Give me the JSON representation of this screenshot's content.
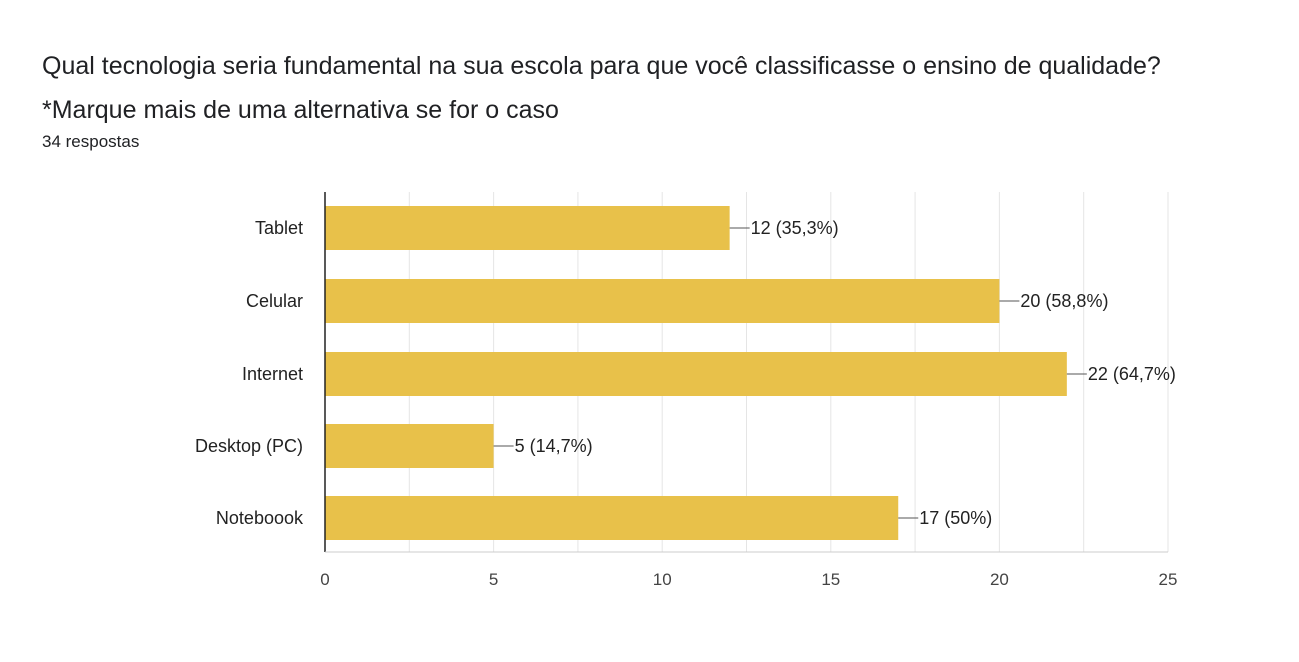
{
  "form": {
    "title": "Qual tecnologia seria fundamental na sua escola para que você classificasse o ensino de qualidade?    *Marque mais de uma alternativa se for o caso",
    "responses": "34 respostas"
  },
  "chart_data": {
    "type": "bar",
    "orientation": "horizontal",
    "categories": [
      "Tablet",
      "Celular",
      "Internet",
      "Desktop (PC)",
      "Noteboook"
    ],
    "values": [
      12,
      20,
      22,
      5,
      17
    ],
    "data_labels": [
      "12 (35,3%)",
      "20 (58,8%)",
      "22 (64,7%)",
      "5 (14,7%)",
      "17 (50%)"
    ],
    "xlim": [
      0,
      25
    ],
    "xticks": [
      0,
      5,
      10,
      15,
      20,
      25
    ],
    "grid": true,
    "bar_color": "#e8c14a",
    "axis_color": "#222222",
    "grid_color": "#e5e5e5"
  }
}
